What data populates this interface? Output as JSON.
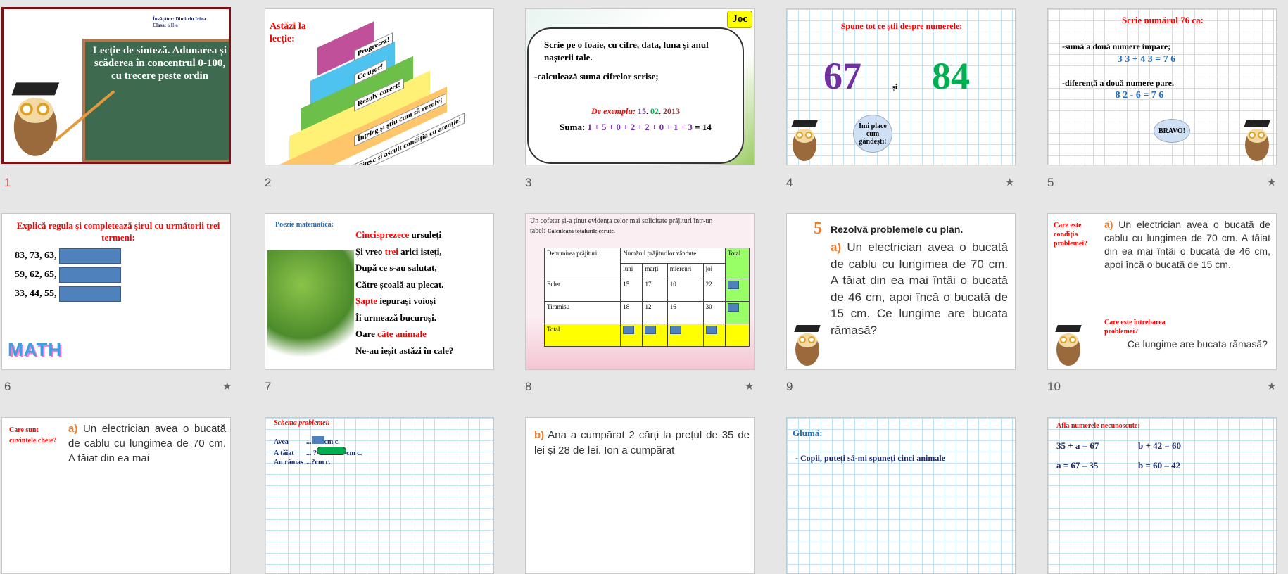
{
  "slides": [
    {
      "number": "1",
      "teacher": "Învățător: Dimitriu Irina",
      "class_label": "Clasa:",
      "class_value": "a II-a",
      "title": "Lecție de sinteză. Adunarea și scăderea în concentrul 0-100, cu trecere peste ordin"
    },
    {
      "number": "2",
      "title": "Astăzi la lecție:",
      "steps": [
        "Progresez!",
        "Ce ușor!",
        "Rezolv corect!",
        "Înțeleg și știu cum să rezolv!",
        "Citesc și ascult condiția cu atenție!"
      ]
    },
    {
      "number": "3",
      "tag": "Joc",
      "line1": "Scrie pe o foaie, cu cifre, data, luna și anul nașterii tale.",
      "line2": "-calculează suma cifrelor scrise;",
      "example_label": "De exemplu:",
      "ex_day": "15",
      "ex_month": "02",
      "ex_year": "2013",
      "sum_label": "Suma:",
      "sum_expr": "1 + 5 + 0 + 2 + 2 + 0 + 1 + 3",
      "sum_result": "= 14"
    },
    {
      "number": "4",
      "title": "Spune tot ce știi despre numerele:",
      "n1": "67",
      "and": "și",
      "n2": "84",
      "bubble": "Îmi place cum gândești!",
      "has_animation": true
    },
    {
      "number": "5",
      "title": "Scrie numărul 76 ca:",
      "l1": "-sumă a două numere impare;",
      "e1": "3 3  +  4 3  = 7 6",
      "l2": "-diferență a două numere pare.",
      "e2": "8 2  -  6 = 7 6",
      "bubble": "BRAVO!",
      "has_animation": true
    },
    {
      "number": "6",
      "title": "Explică regula și completează șirul cu următorii trei termeni:",
      "rows": [
        "83,  73,  63,",
        "59,  62,  65,",
        "33,  44,  55,"
      ],
      "logo": "MATH",
      "has_animation": true
    },
    {
      "number": "7",
      "title": "Poezie matematică:",
      "lines": [
        [
          "Cincisprezece",
          " ursuleți"
        ],
        [
          "Și vreo ",
          "trei",
          " arici isteți,"
        ],
        [
          "După ce s-au salutat,"
        ],
        [
          "Către școală au plecat."
        ],
        [
          "Șapte",
          " iepurași voioși"
        ],
        [
          "Îi urmează bucuroși."
        ],
        [
          "Oare ",
          "câte animale"
        ],
        [
          "Ne-au ieșit astăzi în cale?"
        ]
      ]
    },
    {
      "number": "8",
      "intro": "Un cofetar și-a ținut evidența celor mai solicitate prăjituri într-un tabel:",
      "task": "Calculează totalurile cerute.",
      "headers": [
        "Denumirea prăjiturii",
        "Numărul prăjiturilor vândute",
        "Total"
      ],
      "days": [
        "luni",
        "marți",
        "miercuri",
        "joi"
      ],
      "rows": [
        {
          "name": "Ecler",
          "values": [
            "15",
            "17",
            "10",
            "22"
          ]
        },
        {
          "name": "Tiramisu",
          "values": [
            "18",
            "12",
            "16",
            "30"
          ]
        }
      ],
      "total_label": "Total",
      "has_animation": true
    },
    {
      "number": "9",
      "num": "5",
      "heading": "Rezolvă problemele cu plan.",
      "label": "a)",
      "text": "Un electrician avea o bucată de cablu cu lungimea de 70 cm. A tăiat din ea mai întâi o bucată de 46 cm, apoi încă o bucată de 15 cm. Ce lungime are bucata rămasă?"
    },
    {
      "number": "10",
      "q1": "Care este condiția problemei?",
      "label": "a)",
      "text": "Un electrician avea o bucată de cablu cu lungimea de 70 cm. A tăiat din ea mai întâi o bucată de 46 cm, apoi încă o bucată de 15 cm.",
      "q2": "Care este întrebarea problemei?",
      "question": "Ce lungime are bucata rămasă?",
      "has_animation": true
    },
    {
      "q": "Care sunt cuvintele cheie?",
      "label": "a)",
      "text": "Un electrician avea o bucată de cablu cu lungimea de 70 cm. A tăiat din ea mai"
    },
    {
      "title": "Schema problemei:",
      "r1": "Avea",
      "r1v": "...",
      "r1u": "cm c.",
      "r2": "A tăiat",
      "r2v": "... ?",
      "r2u": "cm c.",
      "r3": "Au rămas",
      "r3v": "...?",
      "r3u": "cm c."
    },
    {
      "label": "b)",
      "text": "Ana a cumpărat 2 cărți la prețul de 35 de lei și 28 de lei. Ion a cumpărat"
    },
    {
      "title": "Glumă:",
      "text": "- Copii, puteți să-mi spuneți cinci animale"
    },
    {
      "title": "Află numerele necunoscute:",
      "e1": "35 + a = 67",
      "e2": "b + 42 = 60",
      "e3": "a = 67 – 35",
      "e4": "b = 60 – 42"
    }
  ]
}
